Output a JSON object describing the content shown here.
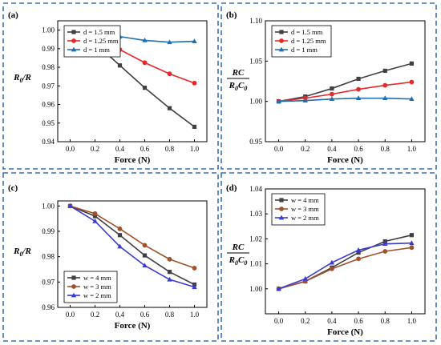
{
  "colors": {
    "frame": "#3b6fb6"
  },
  "chart_data": [
    {
      "panel": "(a)",
      "type": "line",
      "ylabel_parts": [
        {
          "t": "R",
          "sub": false
        },
        {
          "t": "0",
          "sub": true
        },
        {
          "t": "/R",
          "sub": false
        }
      ],
      "ylabel": "R0/R",
      "xlabel": "Force (N)",
      "x": [
        0.0,
        0.2,
        0.4,
        0.6,
        0.8,
        1.0
      ],
      "xlim": [
        -0.1,
        1.1
      ],
      "xticks": [
        "0.0",
        "0.2",
        "0.4",
        "0.6",
        "0.8",
        "1.0"
      ],
      "ylim": [
        0.94,
        1.005
      ],
      "yticks": [
        "0.94",
        "0.95",
        "0.96",
        "0.97",
        "0.98",
        "0.99",
        "1.00"
      ],
      "legend": "bottom-left",
      "series": [
        {
          "name": "d = 1.5 mm",
          "color": "#404040",
          "marker": "square",
          "values": [
            1.0,
            0.993,
            0.981,
            0.969,
            0.958,
            0.948
          ]
        },
        {
          "name": "d = 1.25 mm",
          "color": "#e8282a",
          "marker": "circle",
          "values": [
            1.0,
            0.9965,
            0.9895,
            0.9825,
            0.9765,
            0.9715
          ]
        },
        {
          "name": "d = 1 mm",
          "color": "#1f6fb2",
          "marker": "triangle",
          "values": [
            1.0,
            0.9995,
            0.9965,
            0.9945,
            0.9935,
            0.994
          ]
        }
      ]
    },
    {
      "panel": "(b)",
      "type": "line",
      "ylabel_num": "RC",
      "ylabel_den_parts": [
        {
          "t": "R",
          "sub": false
        },
        {
          "t": "0",
          "sub": true
        },
        {
          "t": "C",
          "sub": false
        },
        {
          "t": "0",
          "sub": true
        }
      ],
      "ylabel": "RC/R0C0",
      "xlabel": "Force (N)",
      "x": [
        0.0,
        0.2,
        0.4,
        0.6,
        0.8,
        1.0
      ],
      "xlim": [
        -0.1,
        1.1
      ],
      "xticks": [
        "0.0",
        "0.2",
        "0.4",
        "0.6",
        "0.8",
        "1.0"
      ],
      "ylim": [
        0.95,
        1.1
      ],
      "yticks": [
        "0.95",
        "1.00",
        "1.05",
        "1.10"
      ],
      "legend": "top-left",
      "series": [
        {
          "name": "d = 1.5 mm",
          "color": "#404040",
          "marker": "square",
          "values": [
            1.0,
            1.006,
            1.016,
            1.028,
            1.038,
            1.047
          ]
        },
        {
          "name": "d = 1.25 mm",
          "color": "#e8282a",
          "marker": "circle",
          "values": [
            1.0,
            1.004,
            1.009,
            1.015,
            1.02,
            1.024
          ]
        },
        {
          "name": "d = 1 mm",
          "color": "#1f6fb2",
          "marker": "triangle",
          "values": [
            1.0,
            1.001,
            1.003,
            1.004,
            1.004,
            1.003
          ]
        }
      ]
    },
    {
      "panel": "(c)",
      "type": "line",
      "ylabel_parts": [
        {
          "t": "R",
          "sub": false
        },
        {
          "t": "0",
          "sub": true
        },
        {
          "t": "/R",
          "sub": false
        }
      ],
      "ylabel": "R0/R",
      "xlabel": "Force (N)",
      "x": [
        0.0,
        0.2,
        0.4,
        0.6,
        0.8,
        1.0
      ],
      "xlim": [
        -0.1,
        1.1
      ],
      "xticks": [
        "0.0",
        "0.2",
        "0.4",
        "0.6",
        "0.8",
        "1.0"
      ],
      "ylim": [
        0.96,
        1.002
      ],
      "yticks": [
        "0.96",
        "0.97",
        "0.98",
        "0.99",
        "1.00"
      ],
      "legend": "bottom-left",
      "series": [
        {
          "name": "w = 4 mm",
          "color": "#404040",
          "marker": "square",
          "values": [
            1.0,
            0.996,
            0.9885,
            0.9805,
            0.974,
            0.969
          ]
        },
        {
          "name": "w = 3 mm",
          "color": "#a0522d",
          "marker": "circle",
          "values": [
            1.0,
            0.997,
            0.991,
            0.9845,
            0.979,
            0.9755
          ]
        },
        {
          "name": "w = 2 mm",
          "color": "#3a3ad6",
          "marker": "triangle",
          "values": [
            1.0,
            0.994,
            0.984,
            0.9765,
            0.971,
            0.968
          ]
        }
      ]
    },
    {
      "panel": "(d)",
      "type": "line",
      "ylabel_num": "RC",
      "ylabel_den_parts": [
        {
          "t": "R",
          "sub": false
        },
        {
          "t": "0",
          "sub": true
        },
        {
          "t": "C",
          "sub": false
        },
        {
          "t": "0",
          "sub": true
        }
      ],
      "ylabel": "RC/R0C0",
      "xlabel": "Force (N)",
      "x": [
        0.0,
        0.2,
        0.4,
        0.6,
        0.8,
        1.0
      ],
      "xlim": [
        -0.1,
        1.1
      ],
      "xticks": [
        "0.0",
        "0.2",
        "0.4",
        "0.6",
        "0.8",
        "1.0"
      ],
      "ylim": [
        0.99,
        1.04
      ],
      "yticks": [
        "1.00",
        "1.01",
        "1.02",
        "1.03",
        "1.04"
      ],
      "legend": "top-left",
      "series": [
        {
          "name": "w = 4 mm",
          "color": "#404040",
          "marker": "square",
          "values": [
            1.0,
            1.003,
            1.0085,
            1.0145,
            1.019,
            1.0215
          ]
        },
        {
          "name": "w = 3 mm",
          "color": "#a0522d",
          "marker": "circle",
          "values": [
            1.0,
            1.003,
            1.008,
            1.012,
            1.015,
            1.0165
          ]
        },
        {
          "name": "w = 2 mm",
          "color": "#3a3ad6",
          "marker": "triangle",
          "values": [
            1.0,
            1.004,
            1.0105,
            1.0155,
            1.018,
            1.0183
          ]
        }
      ]
    }
  ]
}
